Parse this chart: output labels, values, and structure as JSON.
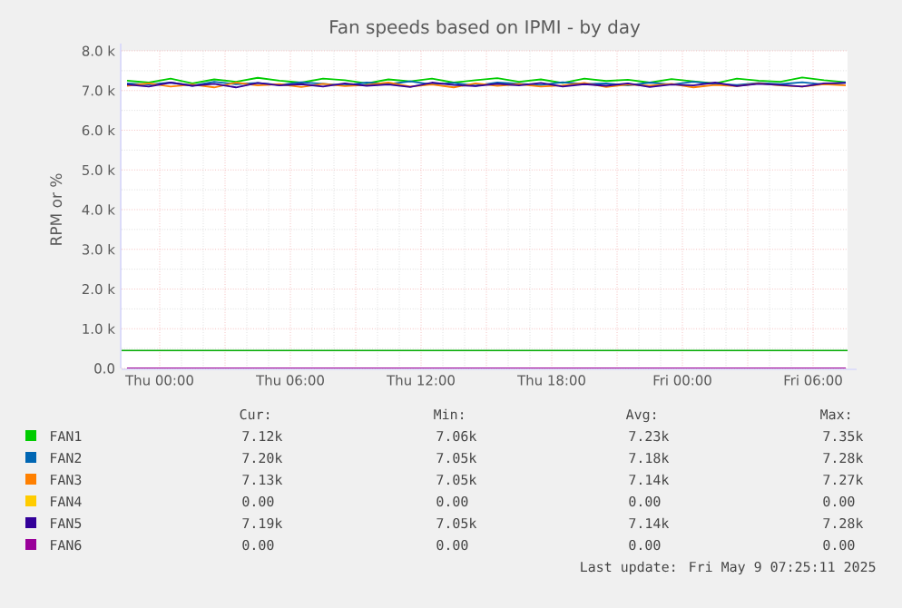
{
  "chart_data": {
    "type": "line",
    "title": "Fan speeds based on IPMI - by day",
    "ylabel": "RPM or %",
    "x": [
      "2025-05-07T22:30",
      "2025-05-07T23:30",
      "2025-05-08T00:30",
      "2025-05-08T01:30",
      "2025-05-08T02:30",
      "2025-05-08T03:30",
      "2025-05-08T04:30",
      "2025-05-08T05:30",
      "2025-05-08T06:30",
      "2025-05-08T07:30",
      "2025-05-08T08:30",
      "2025-05-08T09:30",
      "2025-05-08T10:30",
      "2025-05-08T11:30",
      "2025-05-08T12:30",
      "2025-05-08T13:30",
      "2025-05-08T14:30",
      "2025-05-08T15:30",
      "2025-05-08T16:30",
      "2025-05-08T17:30",
      "2025-05-08T18:30",
      "2025-05-08T19:30",
      "2025-05-08T20:30",
      "2025-05-08T21:30",
      "2025-05-08T22:30",
      "2025-05-08T23:30",
      "2025-05-09T00:30",
      "2025-05-09T01:30",
      "2025-05-09T02:30",
      "2025-05-09T03:30",
      "2025-05-09T04:30",
      "2025-05-09T05:30",
      "2025-05-09T06:30",
      "2025-05-09T07:30"
    ],
    "series": [
      {
        "name": "FAN1",
        "color": "#00cc00",
        "values": [
          7250,
          7200,
          7300,
          7180,
          7280,
          7220,
          7320,
          7250,
          7200,
          7300,
          7260,
          7180,
          7280,
          7230,
          7300,
          7200,
          7260,
          7310,
          7220,
          7280,
          7190,
          7300,
          7240,
          7270,
          7200,
          7290,
          7230,
          7180,
          7300,
          7250,
          7220,
          7330,
          7260,
          7210
        ]
      },
      {
        "name": "FAN2",
        "color": "#0066b3",
        "values": [
          7180,
          7150,
          7200,
          7120,
          7220,
          7160,
          7190,
          7140,
          7210,
          7170,
          7130,
          7200,
          7160,
          7230,
          7150,
          7190,
          7120,
          7200,
          7170,
          7140,
          7210,
          7160,
          7180,
          7130,
          7200,
          7150,
          7220,
          7170,
          7140,
          7190,
          7160,
          7210,
          7150,
          7200
        ]
      },
      {
        "name": "FAN3",
        "color": "#ff8000",
        "values": [
          7120,
          7180,
          7100,
          7150,
          7080,
          7200,
          7130,
          7160,
          7090,
          7170,
          7110,
          7140,
          7200,
          7100,
          7150,
          7080,
          7180,
          7120,
          7160,
          7100,
          7130,
          7190,
          7090,
          7150,
          7120,
          7170,
          7080,
          7140,
          7110,
          7180,
          7130,
          7100,
          7160,
          7130
        ]
      },
      {
        "name": "FAN4",
        "color": "#ffcc00",
        "values": [
          null,
          null,
          null,
          null,
          null,
          null,
          null,
          null,
          null,
          null,
          null,
          null,
          null,
          null,
          null,
          null,
          null,
          null,
          null,
          null,
          null,
          null,
          null,
          null,
          null,
          null,
          null,
          null,
          null,
          null,
          null,
          null,
          null,
          null
        ]
      },
      {
        "name": "FAN5",
        "color": "#330099",
        "values": [
          7150,
          7100,
          7200,
          7120,
          7170,
          7080,
          7190,
          7130,
          7160,
          7100,
          7180,
          7120,
          7150,
          7090,
          7200,
          7140,
          7110,
          7170,
          7130,
          7190,
          7100,
          7160,
          7120,
          7180,
          7090,
          7150,
          7130,
          7200,
          7110,
          7170,
          7140,
          7100,
          7180,
          7190
        ]
      },
      {
        "name": "FAN6",
        "color": "#990099",
        "values": [
          0,
          0,
          0,
          0,
          0,
          0,
          0,
          0,
          0,
          0,
          0,
          0,
          0,
          0,
          0,
          0,
          0,
          0,
          0,
          0,
          0,
          0,
          0,
          0,
          0,
          0,
          0,
          0,
          0,
          0,
          0,
          0,
          0,
          0
        ]
      }
    ],
    "xlim": [
      "2025-05-07T22:15",
      "2025-05-09T07:35"
    ],
    "xticks": [
      {
        "value": "2025-05-08T00:00",
        "label": "Thu 00:00"
      },
      {
        "value": "2025-05-08T03:00",
        "label": null
      },
      {
        "value": "2025-05-08T06:00",
        "label": "Thu 06:00"
      },
      {
        "value": "2025-05-08T09:00",
        "label": null
      },
      {
        "value": "2025-05-08T12:00",
        "label": "Thu 12:00"
      },
      {
        "value": "2025-05-08T15:00",
        "label": null
      },
      {
        "value": "2025-05-08T18:00",
        "label": "Thu 18:00"
      },
      {
        "value": "2025-05-08T21:00",
        "label": null
      },
      {
        "value": "2025-05-09T00:00",
        "label": "Fri 00:00"
      },
      {
        "value": "2025-05-09T03:00",
        "label": null
      },
      {
        "value": "2025-05-09T06:00",
        "label": "Fri 06:00"
      }
    ],
    "ylim": [
      0,
      8000
    ],
    "yticks": [
      {
        "value": 0,
        "label": "0.0"
      },
      {
        "value": 1000,
        "label": "1.0 k"
      },
      {
        "value": 2000,
        "label": "2.0 k"
      },
      {
        "value": 3000,
        "label": "3.0 k"
      },
      {
        "value": 4000,
        "label": "4.0 k"
      },
      {
        "value": 5000,
        "label": "5.0 k"
      },
      {
        "value": 6000,
        "label": "6.0 k"
      },
      {
        "value": 7000,
        "label": "7.0 k"
      },
      {
        "value": 8000,
        "label": "8.0 k"
      }
    ],
    "ref_lines": [
      {
        "axis": "y",
        "value": 450,
        "color": "#00aa00"
      }
    ],
    "grid": true,
    "legend": "bottom",
    "line_style": "solid",
    "annotations": [
      "Cur:",
      "Min:",
      "Avg:",
      "Max:",
      "7.12k",
      "7.06k",
      "7.23k",
      "7.35k",
      "7.20k",
      "7.05k",
      "7.18k",
      "7.28k",
      "7.13k",
      "7.05k",
      "7.14k",
      "7.27k",
      "0.00",
      "0.00",
      "0.00",
      "0.00",
      "7.19k",
      "7.05k",
      "7.14k",
      "7.28k",
      "0.00",
      "0.00",
      "0.00",
      "0.00",
      "Last update: Fri May  9 07:25:11 2025"
    ]
  }
}
